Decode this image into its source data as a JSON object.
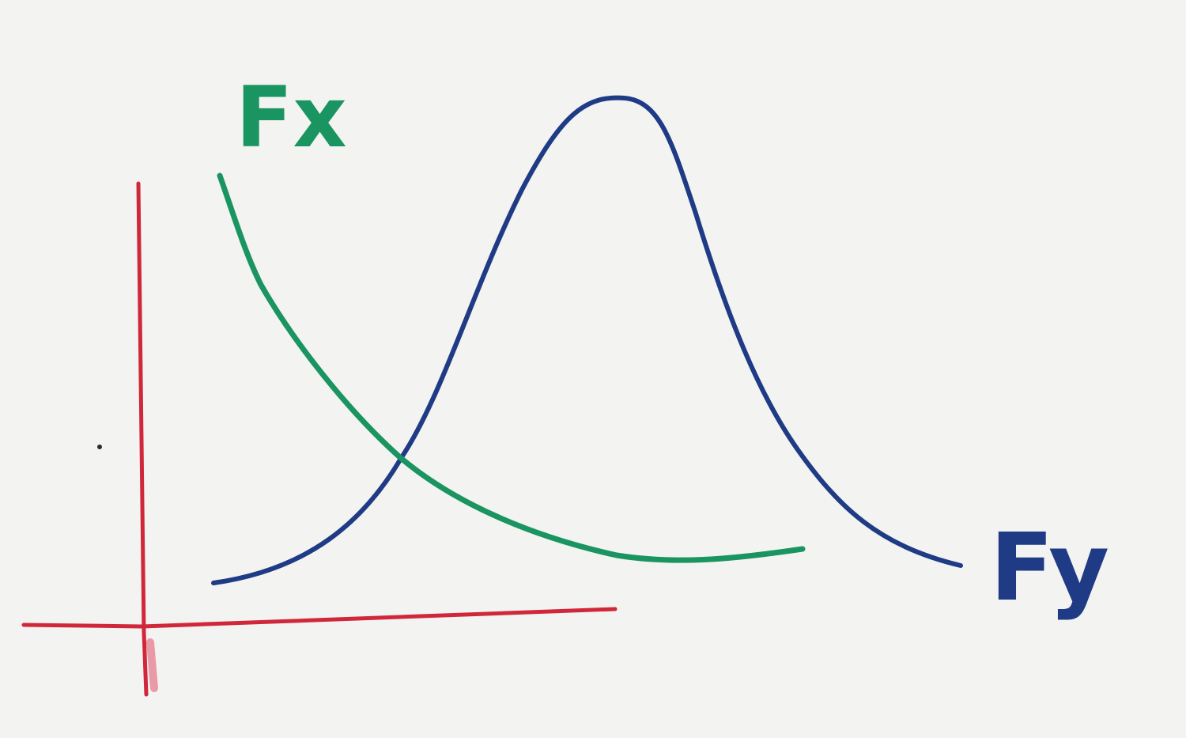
{
  "diagram": {
    "curves": [
      {
        "label": "Fx",
        "color": "#1a9460",
        "shape": "decreasing"
      },
      {
        "label": "Fy",
        "color": "#1f3b85",
        "shape": "bell"
      }
    ],
    "axis_color": "#d0283a"
  }
}
